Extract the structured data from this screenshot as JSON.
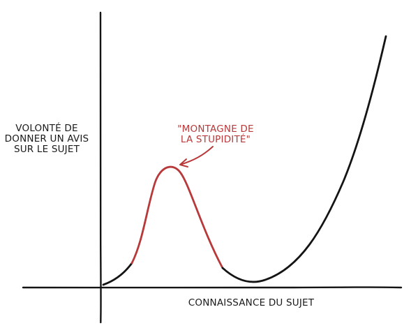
{
  "diagram": {
    "y_axis_label_lines": [
      "VOLONTÉ DE",
      "DONNER UN AVIS",
      "SUR LE SUJET"
    ],
    "x_axis_label": "CONNAISSANCE DU SUJET",
    "annotation_lines": [
      "\"MONTAGNE DE",
      "LA STUPIDITÉ\""
    ],
    "colors": {
      "ink": "#141414",
      "highlight": "#b8393a"
    }
  }
}
